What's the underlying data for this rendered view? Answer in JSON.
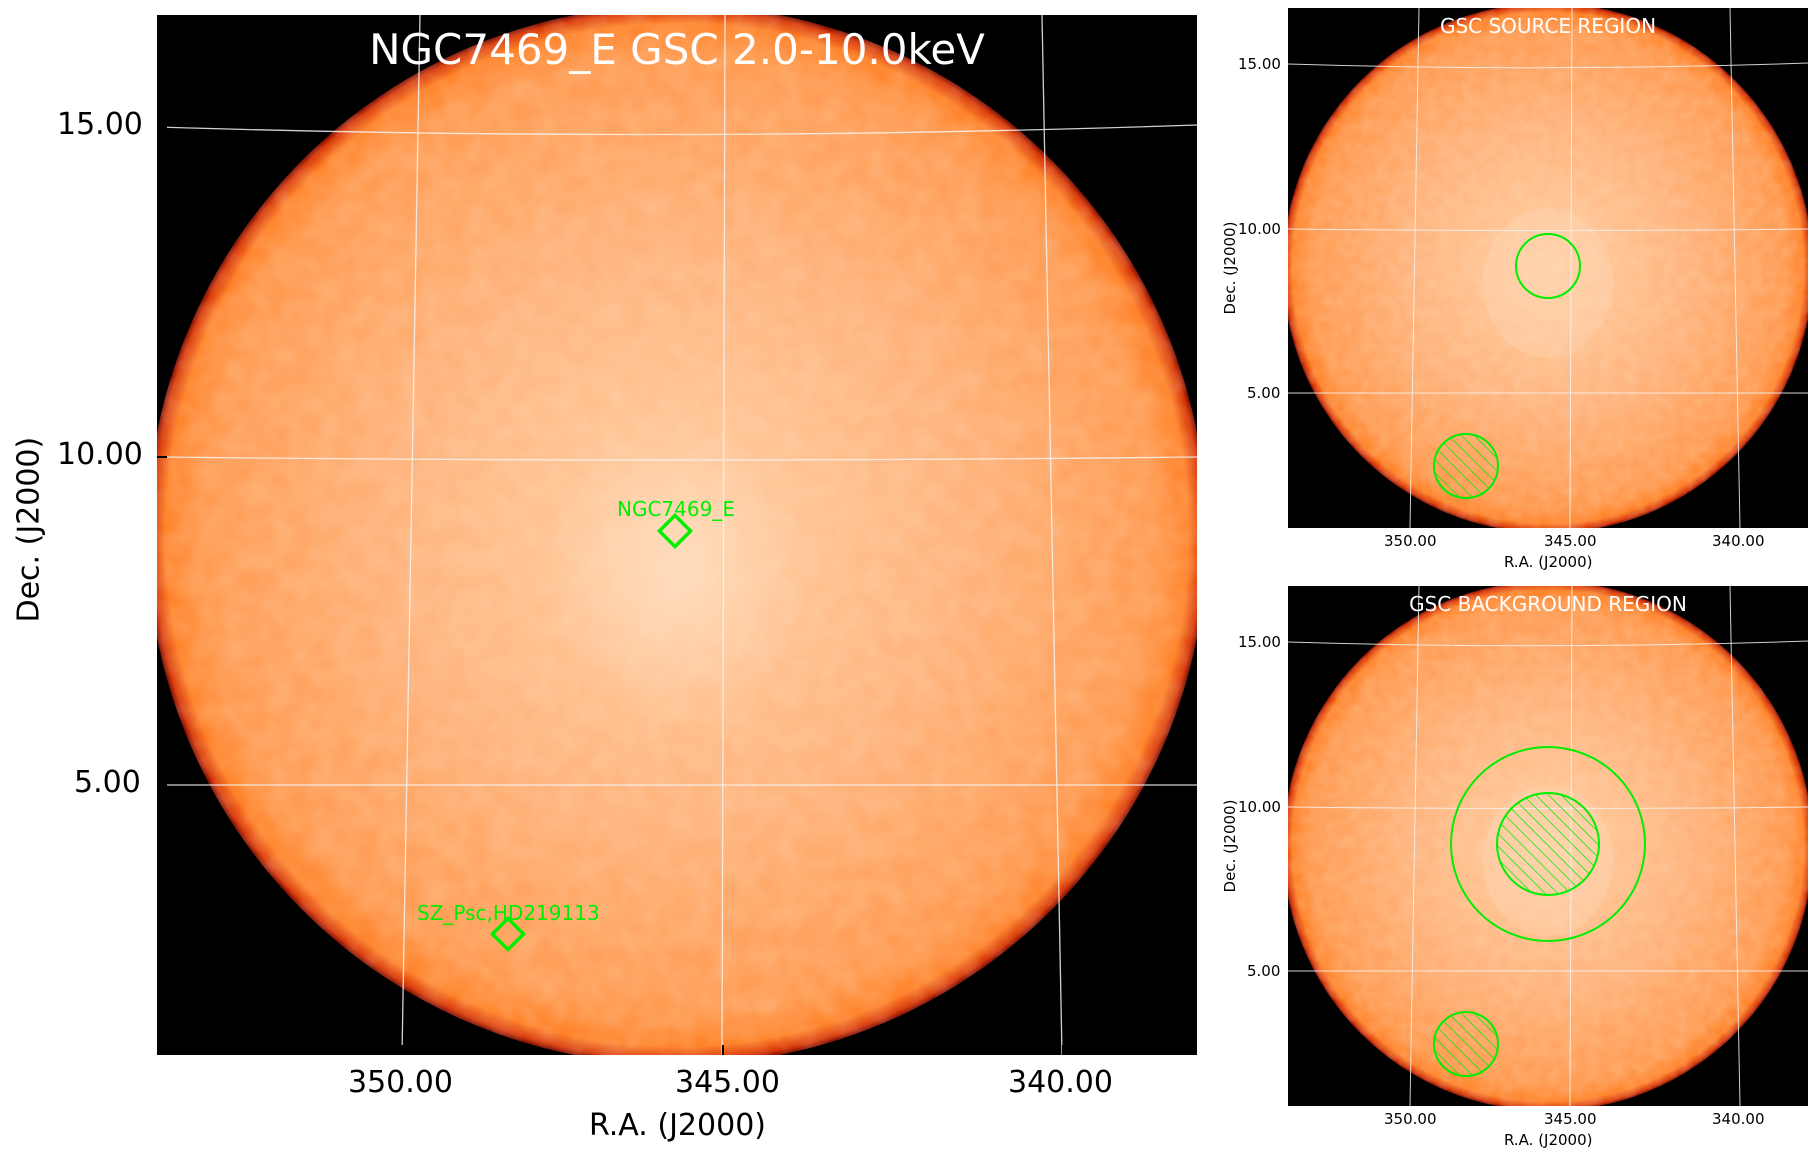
{
  "main_panel": {
    "title": "NGC7469_E GSC 2.0-10.0keV",
    "xlabel": "R.A. (J2000)",
    "ylabel": "Dec. (J2000)",
    "x_ticks": [
      "350.00",
      "345.00",
      "340.00"
    ],
    "y_ticks": [
      "15.00",
      "10.00",
      "5.00"
    ],
    "sources": [
      {
        "name": "NGC7469_E"
      },
      {
        "name": "SZ_Psc,HD219113"
      }
    ]
  },
  "source_panel": {
    "title": "GSC SOURCE REGION",
    "xlabel": "R.A. (J2000)",
    "ylabel": "Dec. (J2000)",
    "x_ticks": [
      "350.00",
      "345.00",
      "340.00"
    ],
    "y_ticks": [
      "15.00",
      "10.00",
      "5.00"
    ]
  },
  "background_panel": {
    "title": "GSC BACKGROUND REGION",
    "xlabel": "R.A. (J2000)",
    "ylabel": "Dec. (J2000)",
    "x_ticks": [
      "350.00",
      "345.00",
      "340.00"
    ],
    "y_ticks": [
      "15.00",
      "10.00",
      "5.00"
    ]
  },
  "colors": {
    "disk_center": "#ffd0a6",
    "disk_mid": "#ffa35e",
    "disk_edge": "#ff7f1e",
    "rim": "#c81e00",
    "background": "#000000",
    "region": "#00ee00",
    "grid": "#f2f2f2"
  }
}
